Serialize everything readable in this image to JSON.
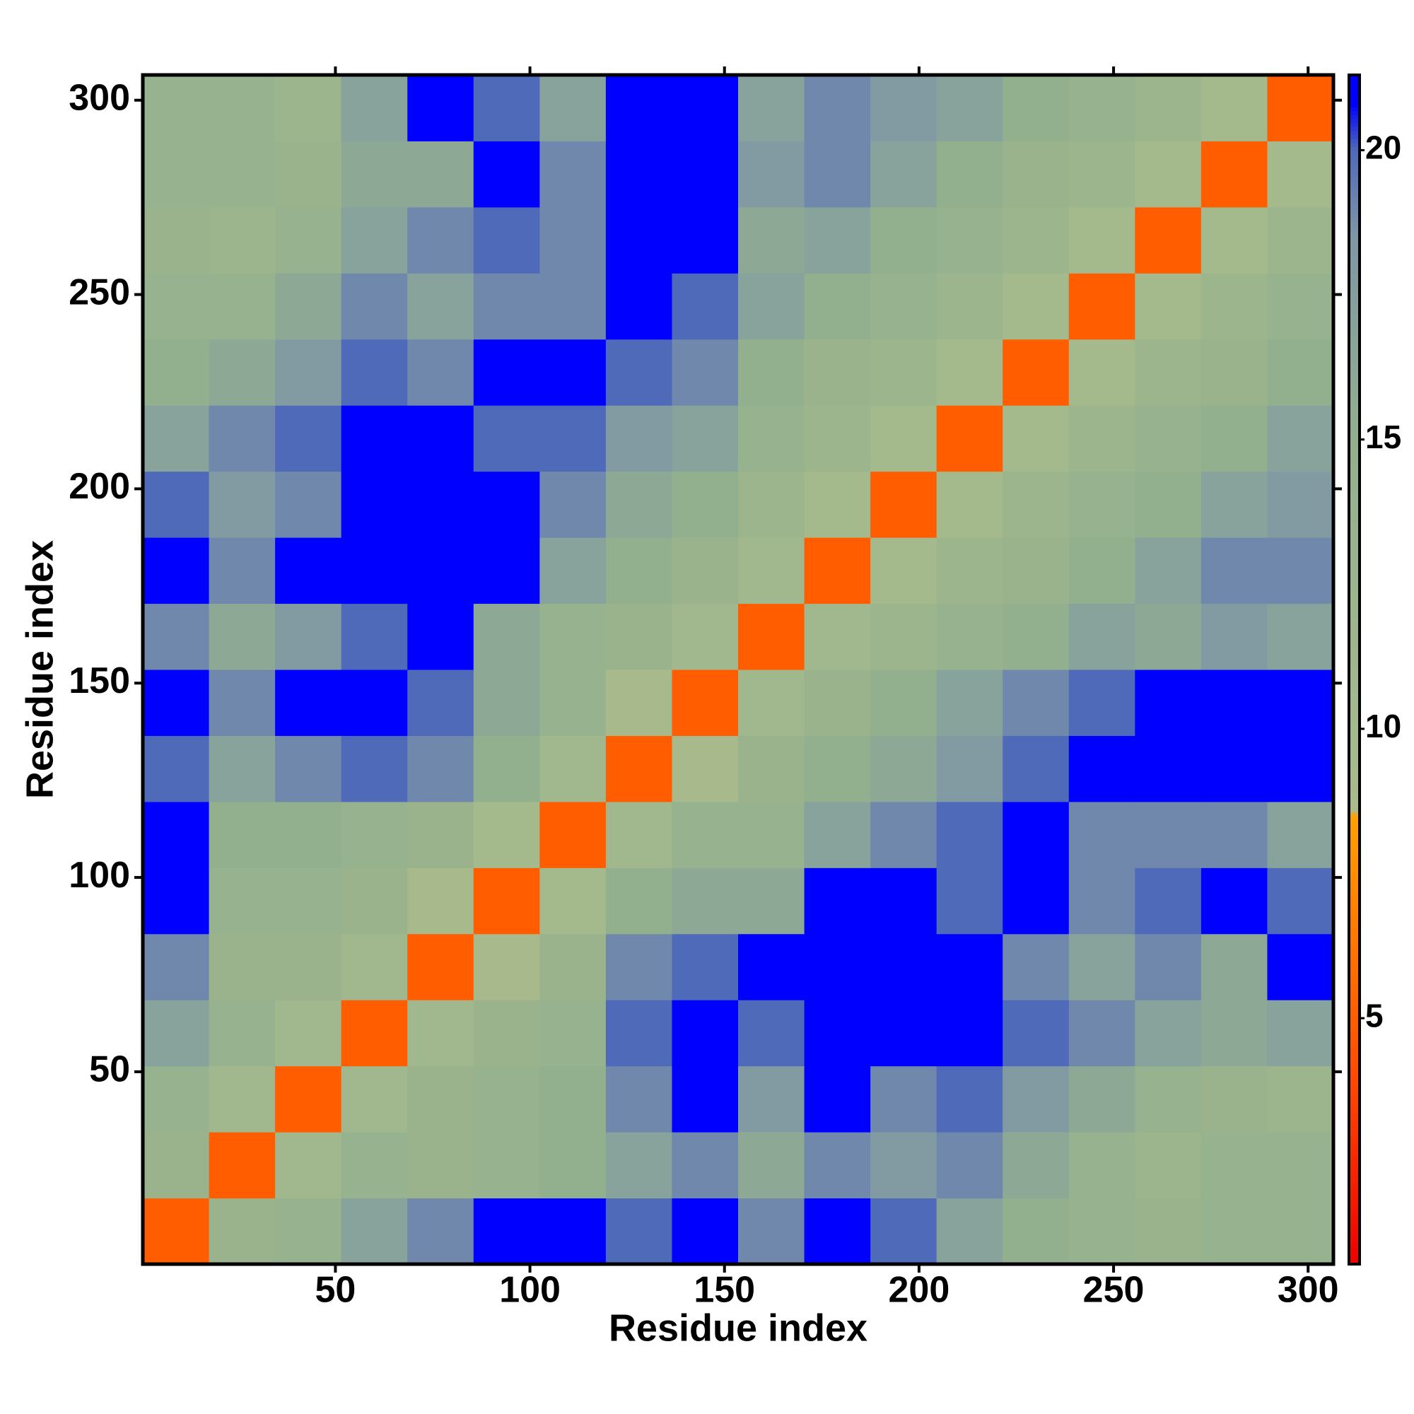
{
  "chart_data": {
    "type": "heatmap",
    "xlabel": "Residue index",
    "ylabel": "Residue index",
    "x": [
      9,
      26,
      43,
      60,
      77,
      94,
      111,
      128,
      145,
      162,
      179,
      196,
      213,
      230,
      247,
      264,
      281,
      298
    ],
    "y": [
      9,
      26,
      43,
      60,
      77,
      94,
      111,
      128,
      145,
      162,
      179,
      196,
      213,
      230,
      247,
      264,
      281,
      298
    ],
    "z": [
      [
        5,
        13,
        14,
        17,
        19,
        21,
        21,
        20,
        21,
        19,
        21,
        20,
        17,
        15,
        14,
        13,
        14,
        14
      ],
      [
        13,
        5,
        11,
        14,
        13,
        14,
        15,
        17,
        19,
        16,
        19,
        18,
        19,
        16,
        14,
        12,
        14,
        14
      ],
      [
        14,
        11,
        5,
        11,
        13,
        14,
        15,
        19,
        21,
        18,
        21,
        19,
        20,
        18,
        16,
        14,
        13,
        12
      ],
      [
        17,
        14,
        11,
        5,
        11,
        13,
        14,
        20,
        21,
        20,
        21,
        21,
        21,
        20,
        19,
        17,
        16,
        17
      ],
      [
        19,
        13,
        13,
        11,
        5,
        9,
        13,
        19,
        20,
        21,
        21,
        21,
        21,
        19,
        17,
        19,
        16,
        21
      ],
      [
        21,
        14,
        14,
        13,
        9,
        5,
        10,
        15,
        16,
        16,
        21,
        21,
        20,
        21,
        19,
        20,
        21,
        20
      ],
      [
        21,
        15,
        15,
        14,
        13,
        10,
        5,
        11,
        14,
        14,
        17,
        19,
        20,
        21,
        19,
        19,
        19,
        17
      ],
      [
        20,
        17,
        19,
        20,
        19,
        15,
        11,
        5,
        9,
        13,
        15,
        16,
        18,
        20,
        21,
        21,
        21,
        21
      ],
      [
        21,
        19,
        21,
        21,
        20,
        16,
        14,
        9,
        5,
        11,
        13,
        15,
        17,
        19,
        20,
        21,
        21,
        21
      ],
      [
        19,
        16,
        18,
        20,
        21,
        16,
        14,
        13,
        11,
        5,
        11,
        12,
        14,
        15,
        17,
        16,
        18,
        17
      ],
      [
        21,
        19,
        21,
        21,
        21,
        21,
        17,
        15,
        13,
        11,
        5,
        10,
        12,
        13,
        15,
        17,
        19,
        19
      ],
      [
        20,
        18,
        19,
        21,
        21,
        21,
        19,
        16,
        15,
        12,
        10,
        5,
        10,
        12,
        14,
        15,
        17,
        18
      ],
      [
        17,
        19,
        20,
        21,
        21,
        20,
        20,
        18,
        17,
        14,
        12,
        10,
        5,
        10,
        12,
        14,
        15,
        17
      ],
      [
        15,
        16,
        18,
        20,
        19,
        21,
        21,
        20,
        19,
        15,
        13,
        12,
        10,
        5,
        10,
        12,
        13,
        15
      ],
      [
        14,
        14,
        16,
        19,
        17,
        19,
        19,
        21,
        20,
        17,
        15,
        14,
        12,
        10,
        5,
        10,
        12,
        14
      ],
      [
        13,
        12,
        14,
        17,
        19,
        20,
        19,
        21,
        21,
        16,
        17,
        15,
        14,
        12,
        10,
        5,
        10,
        12
      ],
      [
        14,
        14,
        13,
        16,
        16,
        21,
        19,
        21,
        21,
        18,
        19,
        17,
        15,
        13,
        12,
        10,
        5,
        10
      ],
      [
        14,
        14,
        12,
        17,
        21,
        20,
        17,
        21,
        21,
        17,
        19,
        18,
        17,
        15,
        14,
        12,
        10,
        5
      ]
    ],
    "xlim": [
      0.5,
      306.5
    ],
    "ylim": [
      0.5,
      306.5
    ],
    "xticks": [
      50,
      100,
      150,
      200,
      250,
      300
    ],
    "yticks": [
      50,
      100,
      150,
      200,
      250,
      300
    ],
    "zlim": [
      0.75,
      21.3
    ],
    "zticks": [
      5,
      10,
      15,
      20
    ],
    "colormap": [
      {
        "value": 0.75,
        "color": "#ee0000"
      },
      {
        "value": 4,
        "color": "#ff4a00"
      },
      {
        "value": 8.5,
        "color": "#ffa000"
      },
      {
        "value": 8.6,
        "color": "#a9bb8c"
      },
      {
        "value": 15,
        "color": "#93b08e"
      },
      {
        "value": 18.5,
        "color": "#7f97a6"
      },
      {
        "value": 20,
        "color": "#4f6ab8"
      },
      {
        "value": 20.8,
        "color": "#0000ff"
      },
      {
        "value": 21.3,
        "color": "#0000ff"
      }
    ]
  }
}
